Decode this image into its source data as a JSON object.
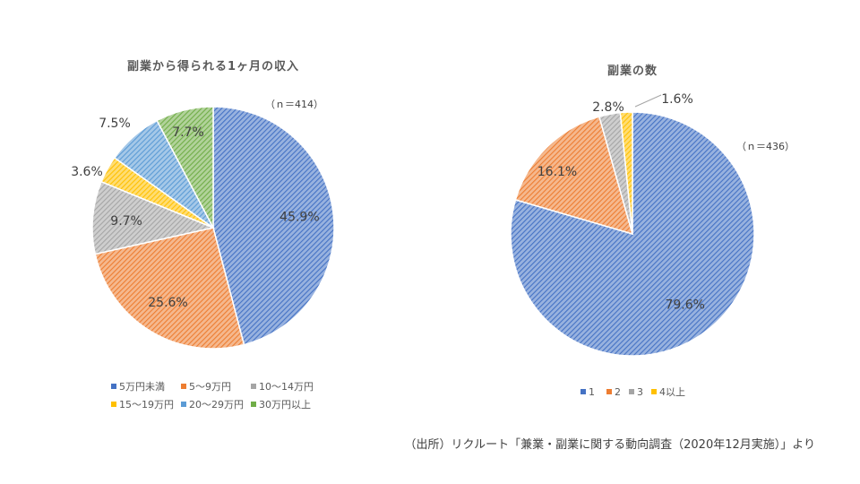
{
  "chart_data": [
    {
      "type": "pie",
      "title": "副業から得られる1ヶ月の収入",
      "n_label": "（ｎ＝414）",
      "legend_position": "bottom",
      "slices": [
        {
          "label": "5万円未満",
          "value": 45.9,
          "value_label": "45.9%",
          "color": "#4472C4"
        },
        {
          "label": "5～9万円",
          "value": 25.6,
          "value_label": "25.6%",
          "color": "#ED7D31"
        },
        {
          "label": "10～14万円",
          "value": 9.7,
          "value_label": "9.7%",
          "color": "#A5A5A5"
        },
        {
          "label": "15～19万円",
          "value": 3.6,
          "value_label": "3.6%",
          "color": "#FFC000"
        },
        {
          "label": "20～29万円",
          "value": 7.5,
          "value_label": "7.5%",
          "color": "#5B9BD5"
        },
        {
          "label": "30万円以上",
          "value": 7.7,
          "value_label": "7.7%",
          "color": "#70AD47"
        }
      ]
    },
    {
      "type": "pie",
      "title": "副業の数",
      "n_label": "（ｎ＝436）",
      "legend_position": "bottom",
      "slices": [
        {
          "label": "1",
          "value": 79.6,
          "value_label": "79.6%",
          "color": "#4472C4"
        },
        {
          "label": "2",
          "value": 16.1,
          "value_label": "16.1%",
          "color": "#ED7D31"
        },
        {
          "label": "3",
          "value": 2.8,
          "value_label": "2.8%",
          "color": "#A5A5A5"
        },
        {
          "label": "4以上",
          "value": 1.6,
          "value_label": "1.6%",
          "color": "#FFC000"
        }
      ]
    }
  ],
  "source_note": "（出所）リクルート「兼業・副業に関する動向調査（2020年12月実施）」より"
}
